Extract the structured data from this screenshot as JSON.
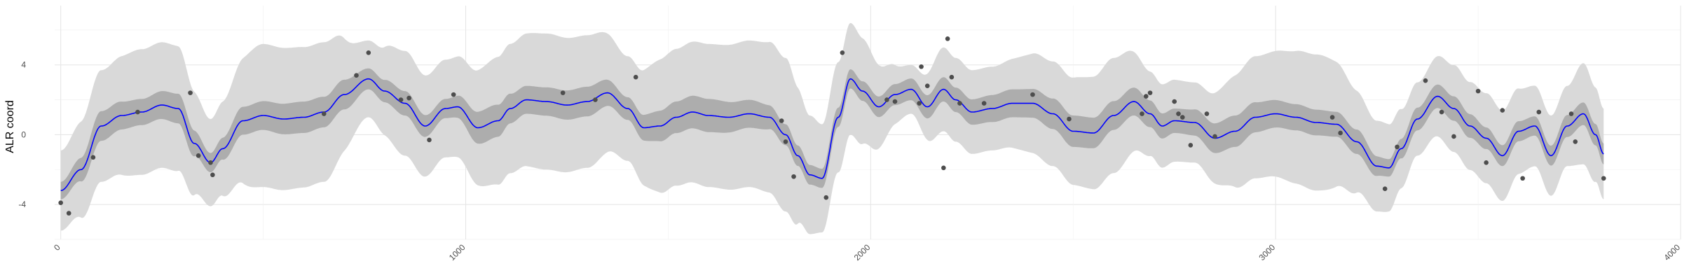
{
  "chart_data": {
    "type": "line",
    "ylabel": "ALR coord",
    "xlabel": "",
    "title": "",
    "xlim": [
      -15,
      4000
    ],
    "ylim": [
      -6,
      7.4
    ],
    "x_ticks": [
      0,
      1000,
      2000,
      3000,
      4000
    ],
    "x_tick_labels": [
      "0",
      "1000",
      "2000",
      "3000",
      "4000"
    ],
    "y_ticks": [
      -4,
      0,
      4
    ],
    "y_tick_labels": [
      "-4",
      "0",
      "4"
    ],
    "grid": true,
    "colors": {
      "mean_line": "#0000ff",
      "inner_band": "#adadad",
      "outer_band": "#d9d9d9",
      "points": "#4d4d4d",
      "grid_major": "#e6e6e6",
      "grid_minor": "#f2f2f2"
    },
    "series": [
      {
        "role": "mean",
        "x": [
          0,
          50,
          100,
          150,
          200,
          250,
          290,
          330,
          370,
          400,
          450,
          500,
          550,
          600,
          650,
          700,
          760,
          800,
          850,
          900,
          950,
          980,
          1030,
          1080,
          1110,
          1150,
          1200,
          1250,
          1300,
          1350,
          1400,
          1440,
          1480,
          1520,
          1560,
          1600,
          1650,
          1700,
          1750,
          1790,
          1820,
          1850,
          1880,
          1920,
          1950,
          1980,
          2020,
          2060,
          2100,
          2140,
          2180,
          2210,
          2250,
          2300,
          2350,
          2400,
          2450,
          2500,
          2550,
          2600,
          2650,
          2690,
          2720,
          2750,
          2800,
          2850,
          2900,
          2950,
          3000,
          3050,
          3100,
          3150,
          3200,
          3250,
          3280,
          3310,
          3350,
          3400,
          3440,
          3480,
          3520,
          3560,
          3600,
          3640,
          3680,
          3720,
          3760,
          3790,
          3810
        ],
        "y": [
          -3.2,
          -2.0,
          0.5,
          1.1,
          1.3,
          1.7,
          1.5,
          -0.5,
          -1.6,
          -0.8,
          0.8,
          1.1,
          0.9,
          1.0,
          1.3,
          2.3,
          3.2,
          2.5,
          1.8,
          0.5,
          1.5,
          1.6,
          0.4,
          0.8,
          1.5,
          2.0,
          1.9,
          1.7,
          1.9,
          2.4,
          1.5,
          0.4,
          0.5,
          1.0,
          1.3,
          1.1,
          1.0,
          1.2,
          1.0,
          0.0,
          -1.2,
          -2.3,
          -2.5,
          1.0,
          3.2,
          2.5,
          1.6,
          2.3,
          2.6,
          1.6,
          2.6,
          2.0,
          1.3,
          1.5,
          1.8,
          1.8,
          1.2,
          0.2,
          0.1,
          1.1,
          1.9,
          1.2,
          0.5,
          0.8,
          0.7,
          -0.2,
          0.2,
          1.0,
          1.2,
          1.0,
          0.7,
          0.6,
          -0.4,
          -1.8,
          -1.9,
          -0.8,
          0.9,
          2.2,
          1.5,
          0.5,
          -0.2,
          -1.2,
          0.2,
          0.5,
          -1.2,
          0.5,
          1.2,
          0.0,
          -1.1
        ]
      },
      {
        "role": "inner_half_width",
        "x": [
          0,
          100,
          200,
          300,
          370,
          450,
          600,
          700,
          760,
          850,
          950,
          1050,
          1150,
          1300,
          1400,
          1500,
          1600,
          1700,
          1790,
          1880,
          1950,
          2050,
          2200,
          2350,
          2500,
          2650,
          2750,
          2900,
          3050,
          3200,
          3280,
          3350,
          3450,
          3550,
          3650,
          3750,
          3810
        ],
        "y": [
          0.5,
          0.85,
          0.75,
          0.85,
          0.55,
          0.8,
          0.9,
          0.85,
          0.6,
          0.7,
          0.55,
          0.95,
          0.8,
          0.85,
          0.65,
          0.9,
          0.95,
          0.8,
          0.6,
          0.55,
          0.55,
          0.6,
          0.7,
          0.8,
          0.9,
          0.8,
          0.7,
          0.9,
          0.75,
          0.7,
          0.5,
          0.65,
          0.7,
          0.6,
          0.55,
          0.65,
          0.6
        ]
      },
      {
        "role": "outer_half_width",
        "x": [
          0,
          100,
          200,
          280,
          370,
          500,
          650,
          760,
          850,
          950,
          1100,
          1200,
          1300,
          1400,
          1500,
          1600,
          1700,
          1790,
          1850,
          1880,
          1950,
          2100,
          2180,
          2300,
          2450,
          2600,
          2700,
          2800,
          2950,
          3100,
          3250,
          3350,
          3450,
          3550,
          3650,
          3720,
          3760,
          3810
        ],
        "y": [
          2.3,
          3.2,
          3.6,
          3.6,
          2.5,
          4.1,
          4.0,
          2.2,
          3.0,
          2.8,
          3.7,
          3.9,
          3.8,
          3.0,
          3.9,
          4.1,
          4.2,
          4.4,
          3.4,
          3.1,
          3.2,
          1.4,
          2.4,
          2.4,
          3.0,
          3.3,
          2.4,
          2.3,
          3.5,
          3.9,
          2.6,
          2.1,
          2.5,
          2.6,
          2.3,
          2.3,
          2.9,
          2.6
        ]
      }
    ],
    "points": {
      "x": [
        0,
        20,
        80,
        190,
        320,
        340,
        370,
        375,
        650,
        730,
        760,
        840,
        860,
        910,
        970,
        1240,
        1320,
        1420,
        1780,
        1790,
        1810,
        1890,
        1930,
        2040,
        2060,
        2120,
        2125,
        2140,
        2180,
        2190,
        2200,
        2220,
        2280,
        2400,
        2490,
        2670,
        2680,
        2690,
        2750,
        2760,
        2770,
        2790,
        2830,
        2850,
        3140,
        3160,
        3270,
        3300,
        3370,
        3410,
        3440,
        3500,
        3520,
        3560,
        3610,
        3650,
        3730,
        3740,
        3810
      ],
      "y": [
        -3.9,
        -4.5,
        -1.3,
        1.3,
        2.4,
        -1.2,
        -1.6,
        -2.3,
        1.2,
        3.4,
        4.7,
        2.0,
        2.1,
        -0.3,
        2.3,
        2.4,
        2.0,
        3.3,
        0.8,
        -0.4,
        -2.4,
        -3.6,
        4.7,
        2.0,
        1.9,
        1.8,
        3.9,
        2.8,
        -1.9,
        5.5,
        3.3,
        1.8,
        1.8,
        2.3,
        0.9,
        1.2,
        2.2,
        2.4,
        1.9,
        1.2,
        1.0,
        -0.6,
        1.2,
        -0.1,
        1.0,
        0.1,
        -3.1,
        -0.7,
        3.1,
        1.3,
        -0.1,
        2.5,
        -1.6,
        1.4,
        -2.5,
        1.3,
        1.2,
        -0.4,
        -2.5
      ]
    }
  }
}
